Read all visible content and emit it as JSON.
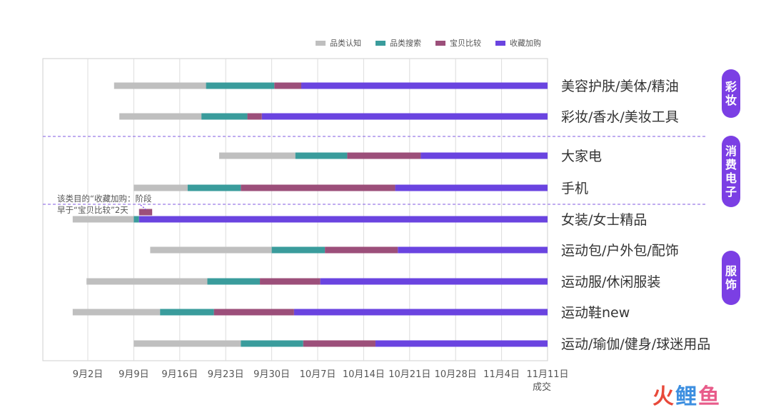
{
  "chart_data": {
    "type": "gantt-bar",
    "x_unit": "days before 11月11日成交",
    "x_ticks": [
      {
        "label": "9月2日",
        "day": 70
      },
      {
        "label": "9月9日",
        "day": 63
      },
      {
        "label": "9月16日",
        "day": 56
      },
      {
        "label": "9月23日",
        "day": 49
      },
      {
        "label": "9月30日",
        "day": 42
      },
      {
        "label": "10月7日",
        "day": 35
      },
      {
        "label": "10月14日",
        "day": 28
      },
      {
        "label": "10月21日",
        "day": 21
      },
      {
        "label": "10月28日",
        "day": 14
      },
      {
        "label": "11月4日",
        "day": 7
      },
      {
        "label": "11月11日",
        "day": 0
      }
    ],
    "x_end_label": "成交",
    "legend": [
      {
        "name": "品类认知",
        "color": "#bfbfbf"
      },
      {
        "name": "品类搜索",
        "color": "#3a9c9c"
      },
      {
        "name": "宝贝比较",
        "color": "#9c4f7a"
      },
      {
        "name": "收藏加购",
        "color": "#6a44e0"
      }
    ],
    "rows": [
      {
        "category": "美容护肤/美体/精油",
        "segments": [
          {
            "stage": "品类认知",
            "start": 66,
            "end": 52
          },
          {
            "stage": "品类搜索",
            "start": 52,
            "end": 41.6
          },
          {
            "stage": "宝贝比较",
            "start": 41.6,
            "end": 37.5
          },
          {
            "stage": "收藏加购",
            "start": 37.5,
            "end": 0
          }
        ]
      },
      {
        "category": "彩妆/香水/美妆工具",
        "segments": [
          {
            "stage": "品类认知",
            "start": 65.2,
            "end": 52.7
          },
          {
            "stage": "品类搜索",
            "start": 52.7,
            "end": 45.7
          },
          {
            "stage": "宝贝比较",
            "start": 45.7,
            "end": 43.5
          },
          {
            "stage": "收藏加购",
            "start": 43.5,
            "end": 0
          }
        ]
      },
      {
        "category": "大家电",
        "segments": [
          {
            "stage": "品类认知",
            "start": 50,
            "end": 38.4
          },
          {
            "stage": "品类搜索",
            "start": 38.4,
            "end": 30.5
          },
          {
            "stage": "宝贝比较",
            "start": 30.5,
            "end": 19.3
          },
          {
            "stage": "收藏加购",
            "start": 19.3,
            "end": 0
          }
        ]
      },
      {
        "category": "手机",
        "segments": [
          {
            "stage": "品类认知",
            "start": 63,
            "end": 54.8
          },
          {
            "stage": "品类搜索",
            "start": 54.8,
            "end": 46.7
          },
          {
            "stage": "宝贝比较",
            "start": 46.7,
            "end": 23.2
          },
          {
            "stage": "收藏加购",
            "start": 23.2,
            "end": 0
          }
        ]
      },
      {
        "category": "女装/女士精品",
        "segments": [
          {
            "stage": "品类认知",
            "start": 72.3,
            "end": 63
          },
          {
            "stage": "品类搜索",
            "start": 63,
            "end": 62.2
          },
          {
            "stage": "收藏加购",
            "start": 62.2,
            "end": 0
          }
        ],
        "extra_bar": {
          "stage": "宝贝比较",
          "start": 62.2,
          "end": 60.2
        }
      },
      {
        "category": "运动包/户外包/配饰",
        "segments": [
          {
            "stage": "品类认知",
            "start": 60.5,
            "end": 42
          },
          {
            "stage": "品类搜索",
            "start": 42,
            "end": 33.9
          },
          {
            "stage": "宝贝比较",
            "start": 33.9,
            "end": 22.8
          },
          {
            "stage": "收藏加购",
            "start": 22.8,
            "end": 0
          }
        ]
      },
      {
        "category": "运动服/休闲服装",
        "segments": [
          {
            "stage": "品类认知",
            "start": 70.2,
            "end": 51.8
          },
          {
            "stage": "品类搜索",
            "start": 51.8,
            "end": 43.8
          },
          {
            "stage": "宝贝比较",
            "start": 43.8,
            "end": 34.6
          },
          {
            "stage": "收藏加购",
            "start": 34.6,
            "end": 0
          }
        ]
      },
      {
        "category": "运动鞋new",
        "segments": [
          {
            "stage": "品类认知",
            "start": 72.3,
            "end": 59
          },
          {
            "stage": "品类搜索",
            "start": 59,
            "end": 50.8
          },
          {
            "stage": "宝贝比较",
            "start": 50.8,
            "end": 38.6
          },
          {
            "stage": "收藏加购",
            "start": 38.6,
            "end": 0
          }
        ]
      },
      {
        "category": "运动/瑜伽/健身/球迷用品",
        "segments": [
          {
            "stage": "品类认知",
            "start": 63,
            "end": 46.7
          },
          {
            "stage": "品类搜索",
            "start": 46.7,
            "end": 37.2
          },
          {
            "stage": "宝贝比较",
            "start": 37.2,
            "end": 26.2
          },
          {
            "stage": "收藏加购",
            "start": 26.2,
            "end": 0
          }
        ]
      }
    ],
    "groups": [
      {
        "label": "彩妆",
        "rows": [
          0,
          1
        ]
      },
      {
        "label": "消费电子",
        "rows": [
          2,
          3
        ]
      },
      {
        "label": "服饰",
        "rows": [
          4,
          8
        ]
      }
    ],
    "annotation": {
      "line1": "该类目的“收藏加购：阶段",
      "line2": "早于“宝贝比较”2天"
    },
    "grid": true
  },
  "logo": {
    "part1": "火",
    "part2": "鲤",
    "part3": "鱼"
  },
  "colors": {
    "accent": "#7b3fe4",
    "divider": "#9a7be6"
  }
}
